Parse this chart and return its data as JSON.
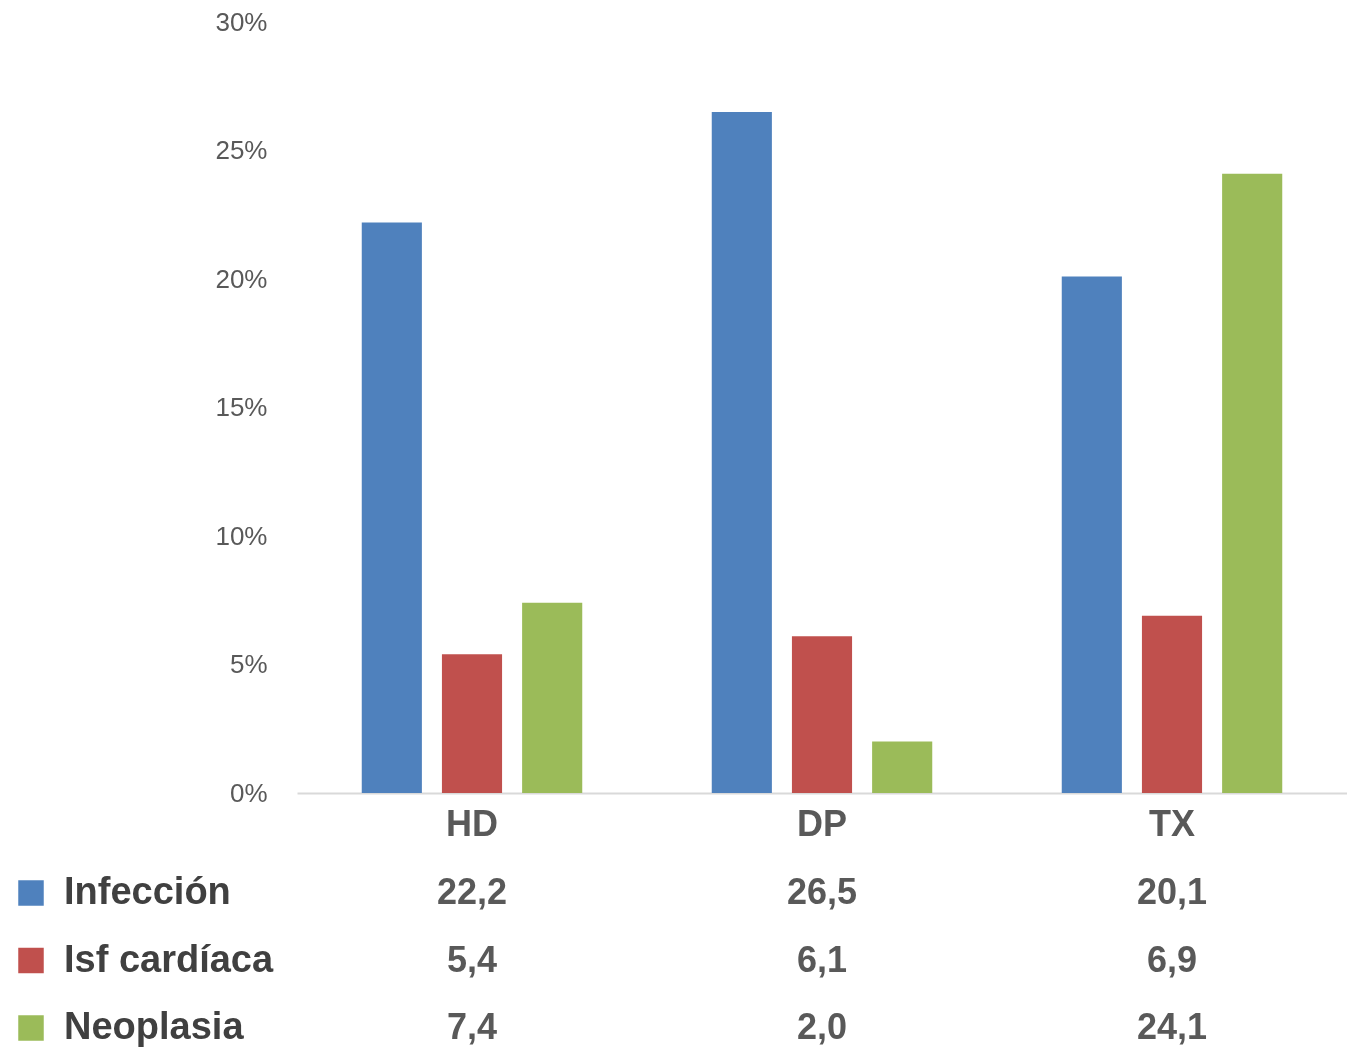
{
  "chart_data": {
    "type": "bar",
    "categories": [
      "HD",
      "DP",
      "TX"
    ],
    "series": [
      {
        "name": "Infección",
        "color": "#4f81bd",
        "values": [
          22.2,
          26.5,
          20.1
        ],
        "value_labels": [
          "22,2",
          "26,5",
          "20,1"
        ]
      },
      {
        "name": "Isf cardíaca",
        "color": "#c0504d",
        "values": [
          5.4,
          6.1,
          6.9
        ],
        "value_labels": [
          "5,4",
          "6,1",
          "6,9"
        ]
      },
      {
        "name": "Neoplasia",
        "color": "#9bbb59",
        "values": [
          7.4,
          2.0,
          24.1
        ],
        "value_labels": [
          "7,4",
          "2,0",
          "24,1"
        ]
      }
    ],
    "ylim": [
      0,
      30
    ],
    "yticks": [
      {
        "value": 0,
        "label": "0%"
      },
      {
        "value": 5,
        "label": "5%"
      },
      {
        "value": 10,
        "label": "10%"
      },
      {
        "value": 15,
        "label": "15%"
      },
      {
        "value": 20,
        "label": "20%"
      },
      {
        "value": 25,
        "label": "25%"
      },
      {
        "value": 30,
        "label": "30%"
      }
    ],
    "legend": "bottom left"
  }
}
